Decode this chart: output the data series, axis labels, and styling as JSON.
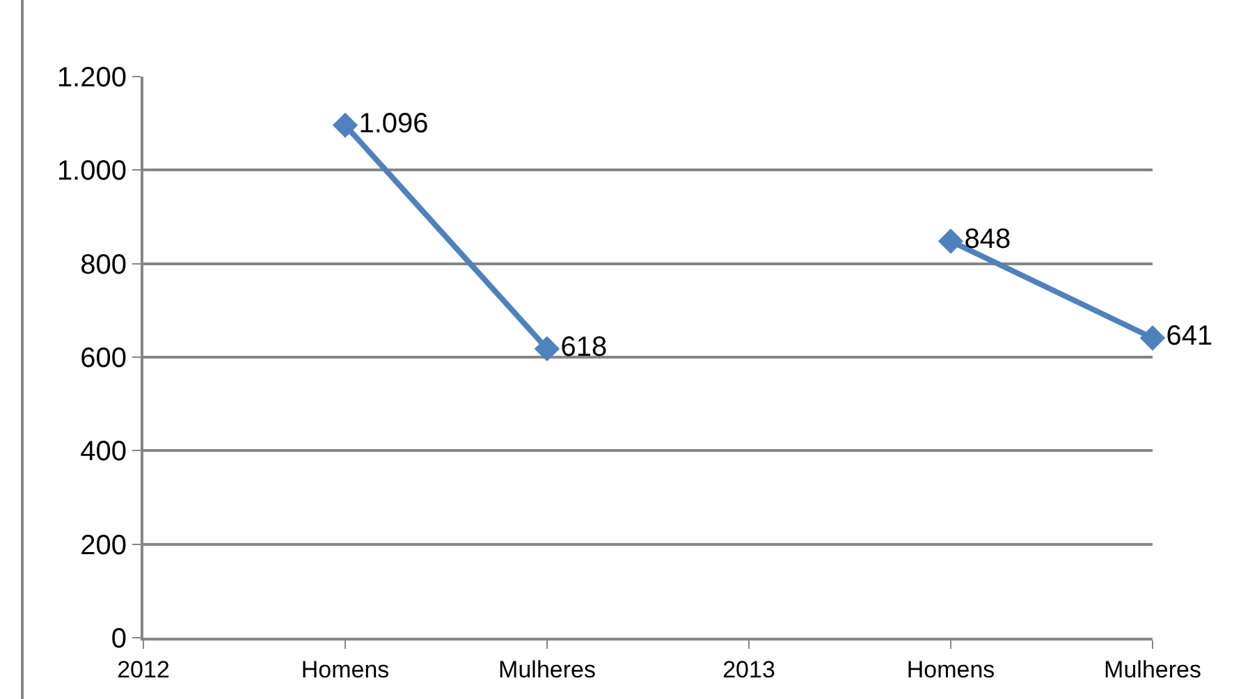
{
  "chart_data": {
    "type": "line",
    "categories": [
      "2012",
      "Homens",
      "Mulheres",
      "2013",
      "Homens",
      "Mulheres"
    ],
    "series": [
      {
        "color": "#4f81bd",
        "values": [
          null,
          1096,
          618,
          null,
          848,
          641
        ],
        "value_labels": [
          null,
          "1.096",
          "618",
          null,
          "848",
          "641"
        ]
      }
    ],
    "ylim": [
      0,
      1200
    ],
    "yticks": [
      0,
      200,
      400,
      600,
      800,
      {
        "value": 1000,
        "label": "1.000"
      },
      {
        "value": 1200,
        "label": "1.200"
      }
    ],
    "grid": "y",
    "marker": "diamond",
    "line_style": "solid",
    "legend": false
  }
}
